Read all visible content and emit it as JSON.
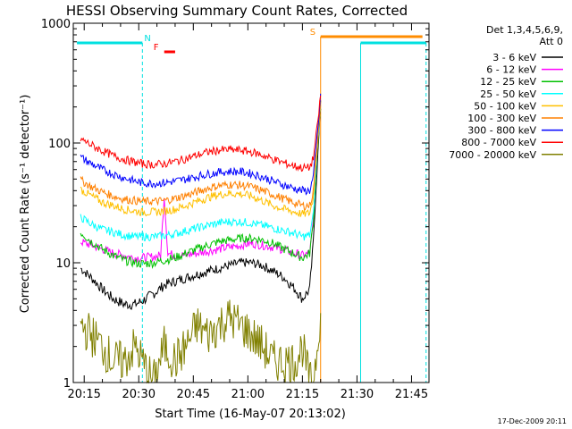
{
  "chart_data": {
    "type": "line",
    "title": "HESSI Observing Summary Count Rates, Corrected",
    "xlabel": "Start Time (16-May-07 20:13:02)",
    "ylabel": "Corrected Count Rate (s⁻¹ detector⁻¹)",
    "yscale": "log",
    "ylim": [
      1,
      1000
    ],
    "xlim_minutes": [
      20.2,
      21.83
    ],
    "x_unit": "UT hh:mm",
    "x_ticks": [
      "20:15",
      "20:30",
      "20:45",
      "21:00",
      "21:15",
      "21:30",
      "21:45"
    ],
    "y_ticks": [
      "1",
      "10",
      "100",
      "1000"
    ],
    "timestamp": "17-Dec-2009 20:11",
    "legend": {
      "position": "top-right",
      "header_line1": "Det 1,3,4,5,6,9,",
      "header_line2": "Att 0"
    },
    "flags": {
      "night": {
        "label": "N",
        "color": "#00e0e0",
        "intervals": [
          [
            "20:13",
            "20:31"
          ],
          [
            "21:31",
            "21:49"
          ]
        ]
      },
      "flare": {
        "label": "F",
        "color": "#ff0000",
        "intervals": [
          [
            "20:37",
            "20:40"
          ]
        ]
      },
      "saa": {
        "label": "S",
        "color": "#ff8c00",
        "intervals": [
          [
            "21:20",
            "21:48"
          ]
        ]
      }
    },
    "series": [
      {
        "name": "3 - 6 keV",
        "color": "#000000",
        "x": [
          "20:14",
          "20:17",
          "20:20",
          "20:23",
          "20:26",
          "20:29",
          "20:31",
          "20:34",
          "20:37",
          "20:40",
          "20:43",
          "20:46",
          "20:49",
          "20:52",
          "20:55",
          "20:58",
          "21:01",
          "21:04",
          "21:07",
          "21:10",
          "21:13",
          "21:15",
          "21:17",
          "21:18",
          "21:19",
          "21:20"
        ],
        "y": [
          9,
          7.5,
          6,
          5,
          4.5,
          4.5,
          4.8,
          5.5,
          6.5,
          7,
          7.5,
          8,
          8.5,
          9,
          9.5,
          10,
          10,
          9.5,
          8.5,
          7.5,
          6,
          5,
          6,
          15,
          60,
          200
        ]
      },
      {
        "name": "6 - 12 keV",
        "color": "#ff00ff",
        "x": [
          "20:14",
          "20:17",
          "20:20",
          "20:23",
          "20:26",
          "20:29",
          "20:31",
          "20:34",
          "20:36",
          "20:37",
          "20:38",
          "20:40",
          "20:43",
          "20:46",
          "20:49",
          "20:52",
          "20:55",
          "20:58",
          "21:01",
          "21:04",
          "21:07",
          "21:10",
          "21:13",
          "21:15",
          "21:17",
          "21:18",
          "21:19",
          "21:20"
        ],
        "y": [
          15,
          14,
          13,
          12,
          11.5,
          11,
          11,
          11.2,
          11.5,
          36,
          12,
          11.5,
          11.6,
          12,
          12.5,
          13,
          13.5,
          14,
          14.5,
          14,
          13.5,
          12.8,
          12,
          11.5,
          12,
          22,
          80,
          230
        ]
      },
      {
        "name": "12 - 25 keV",
        "color": "#00c000",
        "x": [
          "20:14",
          "20:17",
          "20:20",
          "20:23",
          "20:26",
          "20:29",
          "20:31",
          "20:34",
          "20:37",
          "20:40",
          "20:43",
          "20:46",
          "20:49",
          "20:52",
          "20:55",
          "20:58",
          "21:01",
          "21:04",
          "21:07",
          "21:10",
          "21:13",
          "21:15",
          "21:17",
          "21:18",
          "21:19",
          "21:20"
        ],
        "y": [
          18,
          15,
          13,
          11.5,
          10.5,
          10,
          9.8,
          10,
          10.5,
          11,
          12,
          13,
          14,
          15,
          15.5,
          16,
          16,
          15.5,
          14.5,
          13,
          11.8,
          11,
          12,
          22,
          80,
          210
        ]
      },
      {
        "name": "25 - 50 keV",
        "color": "#00ffff",
        "x": [
          "20:14",
          "20:17",
          "20:20",
          "20:23",
          "20:26",
          "20:29",
          "20:31",
          "20:34",
          "20:37",
          "20:40",
          "20:43",
          "20:46",
          "20:49",
          "20:52",
          "20:55",
          "20:58",
          "21:01",
          "21:04",
          "21:07",
          "21:10",
          "21:13",
          "21:15",
          "21:17",
          "21:18",
          "21:19",
          "21:20"
        ],
        "y": [
          24,
          21,
          19,
          18,
          17,
          16.5,
          16.5,
          16.5,
          16.8,
          17.5,
          18.5,
          19.5,
          20.5,
          21.5,
          22,
          22,
          21.5,
          20.5,
          19.5,
          18.5,
          17.5,
          16.5,
          17,
          25,
          80,
          210
        ]
      },
      {
        "name": "50 - 100 keV",
        "color": "#ffc000",
        "x": [
          "20:14",
          "20:17",
          "20:20",
          "20:23",
          "20:26",
          "20:29",
          "20:31",
          "20:34",
          "20:37",
          "20:40",
          "20:43",
          "20:46",
          "20:49",
          "20:52",
          "20:55",
          "20:58",
          "21:01",
          "21:04",
          "21:07",
          "21:10",
          "21:13",
          "21:15",
          "21:17",
          "21:18",
          "21:19",
          "21:20"
        ],
        "y": [
          41,
          36,
          32,
          30,
          28,
          27,
          26.5,
          26.5,
          27,
          28,
          30,
          32.5,
          35,
          37,
          38,
          37.5,
          36,
          33,
          30,
          28,
          26.5,
          25.5,
          26,
          35,
          90,
          220
        ]
      },
      {
        "name": "100 - 300 keV",
        "color": "#ff8000",
        "x": [
          "20:14",
          "20:17",
          "20:20",
          "20:23",
          "20:26",
          "20:29",
          "20:31",
          "20:34",
          "20:37",
          "20:40",
          "20:43",
          "20:46",
          "20:49",
          "20:52",
          "20:55",
          "20:58",
          "21:01",
          "21:04",
          "21:07",
          "21:10",
          "21:13",
          "21:15",
          "21:17",
          "21:18",
          "21:19",
          "21:20"
        ],
        "y": [
          49,
          43,
          39,
          36,
          34,
          33,
          32.5,
          32.5,
          33,
          34.5,
          36.5,
          39,
          42,
          44,
          45,
          44.5,
          43,
          40,
          37,
          34,
          31.5,
          30,
          30,
          40,
          95,
          230
        ]
      },
      {
        "name": "300 - 800 keV",
        "color": "#0000ff",
        "x": [
          "20:14",
          "20:17",
          "20:20",
          "20:23",
          "20:26",
          "20:29",
          "20:31",
          "20:34",
          "20:37",
          "20:40",
          "20:43",
          "20:46",
          "20:49",
          "20:52",
          "20:55",
          "20:58",
          "21:01",
          "21:04",
          "21:07",
          "21:10",
          "21:13",
          "21:15",
          "21:17",
          "21:18",
          "21:19",
          "21:20"
        ],
        "y": [
          76,
          67,
          60,
          55,
          51,
          48,
          46.5,
          46,
          46.5,
          48,
          50,
          52.5,
          55,
          57,
          58,
          57.5,
          55.5,
          52,
          48,
          44.5,
          41.5,
          40,
          40,
          52,
          110,
          240
        ]
      },
      {
        "name": "800 - 7000 keV",
        "color": "#ff0000",
        "x": [
          "20:14",
          "20:17",
          "20:20",
          "20:23",
          "20:26",
          "20:29",
          "20:31",
          "20:34",
          "20:37",
          "20:40",
          "20:43",
          "20:46",
          "20:49",
          "20:52",
          "20:55",
          "20:58",
          "21:01",
          "21:04",
          "21:07",
          "21:10",
          "21:13",
          "21:15",
          "21:17",
          "21:18",
          "21:19",
          "21:20"
        ],
        "y": [
          108,
          96,
          86,
          78,
          73,
          69,
          67,
          66,
          67,
          70,
          74,
          79,
          84,
          87,
          88,
          87,
          84,
          79,
          73,
          68,
          64,
          62,
          62,
          75,
          130,
          250
        ]
      },
      {
        "name": "7000 - 20000 keV",
        "color": "#808000",
        "x": [
          "20:14",
          "20:17",
          "20:20",
          "20:23",
          "20:26",
          "20:29",
          "20:31",
          "20:34",
          "20:37",
          "20:40",
          "20:43",
          "20:46",
          "20:49",
          "20:52",
          "20:55",
          "20:58",
          "21:01",
          "21:04",
          "21:07",
          "21:10",
          "21:13",
          "21:15",
          "21:17",
          "21:18",
          "21:19",
          "21:20"
        ],
        "y": [
          3,
          2.5,
          2,
          1.5,
          1.5,
          2,
          1.5,
          1,
          2,
          1.5,
          2,
          3,
          2.5,
          3,
          3.5,
          3,
          2.5,
          2,
          1.5,
          1.5,
          1.5,
          2,
          1,
          1,
          2,
          4
        ]
      }
    ]
  }
}
